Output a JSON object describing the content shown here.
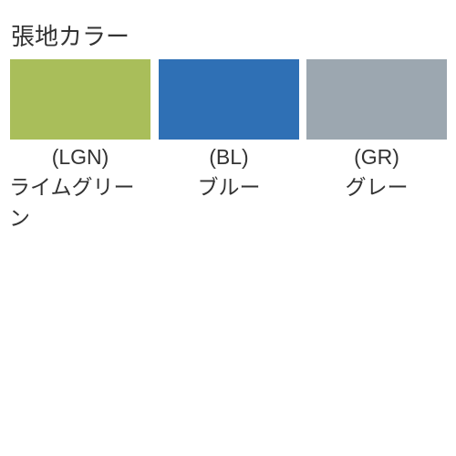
{
  "title": "張地カラー",
  "swatches": [
    {
      "code": "(LGN)",
      "name": "ライムグリーン",
      "color": "#a9be5a"
    },
    {
      "code": "(BL)",
      "name": "ブルー",
      "color": "#2f70b5"
    },
    {
      "code": "(GR)",
      "name": "グレー",
      "color": "#9ca7b0"
    }
  ],
  "text_color": "#333333",
  "background_color": "#ffffff",
  "title_fontsize": 26,
  "label_fontsize": 23,
  "swatch_width": 154,
  "swatch_height": 88
}
